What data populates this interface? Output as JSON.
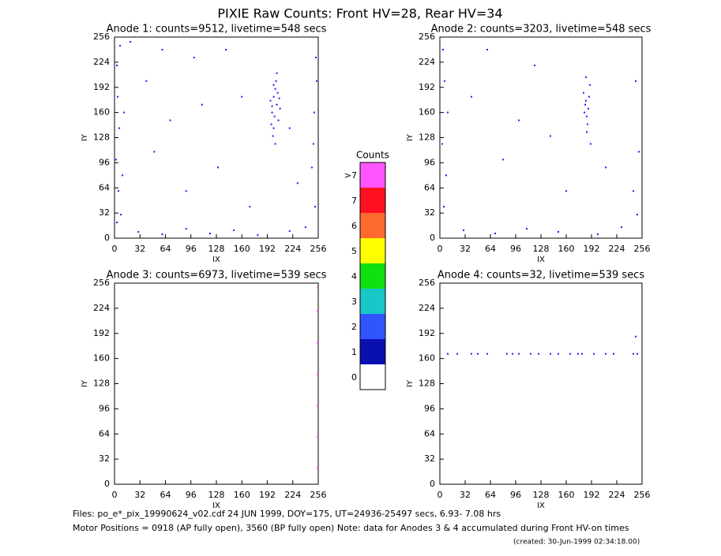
{
  "header": {
    "title": "PIXIE Raw Counts:  Front HV=28, Rear HV=34"
  },
  "footer": {
    "lines": [
      "Files: po_e*_pix_19990624_v02.cdf    24 JUN 1999, DOY=175, UT=24936-25497 secs,  6.93- 7.08 hrs",
      "Motor Positions = 0918 (AP fully open), 3560 (BP fully open)    Note: data for Anodes 3 & 4 accumulated during Front HV-on times"
    ],
    "created": "(created: 30-Jun-1999 02:34:18.00)"
  },
  "chart_data": [
    {
      "type": "scatter",
      "title": "Anode 1: counts=9512, livetime=548 secs",
      "x_label": "IX",
      "y_label": "IY",
      "color": "#1a1aff",
      "xlim": [
        0,
        256
      ],
      "ylim": [
        0,
        256
      ],
      "xticks": [
        0,
        32,
        64,
        96,
        128,
        160,
        192,
        224,
        256
      ],
      "yticks": [
        0,
        32,
        64,
        96,
        128,
        160,
        192,
        224,
        256
      ],
      "points": [
        [
          200,
          180
        ],
        [
          204,
          170
        ],
        [
          198,
          160
        ],
        [
          206,
          150
        ],
        [
          202,
          190
        ],
        [
          196,
          175
        ],
        [
          208,
          165
        ],
        [
          200,
          140
        ],
        [
          203,
          200
        ],
        [
          199,
          130
        ],
        [
          205,
          185
        ],
        [
          201,
          155
        ],
        [
          197,
          145
        ],
        [
          207,
          178
        ],
        [
          202,
          120
        ],
        [
          204,
          210
        ],
        [
          198,
          168
        ],
        [
          200,
          195
        ],
        [
          3,
          20
        ],
        [
          5,
          60
        ],
        [
          2,
          100
        ],
        [
          6,
          140
        ],
        [
          4,
          180
        ],
        [
          3,
          220
        ],
        [
          7,
          245
        ],
        [
          10,
          80
        ],
        [
          12,
          160
        ],
        [
          8,
          30
        ],
        [
          252,
          40
        ],
        [
          250,
          120
        ],
        [
          254,
          200
        ],
        [
          248,
          90
        ],
        [
          253,
          230
        ],
        [
          251,
          160
        ],
        [
          30,
          8
        ],
        [
          60,
          5
        ],
        [
          90,
          12
        ],
        [
          120,
          6
        ],
        [
          150,
          10
        ],
        [
          180,
          4
        ],
        [
          220,
          9
        ],
        [
          240,
          14
        ],
        [
          40,
          200
        ],
        [
          70,
          150
        ],
        [
          100,
          230
        ],
        [
          130,
          90
        ],
        [
          160,
          180
        ],
        [
          50,
          110
        ],
        [
          90,
          60
        ],
        [
          140,
          240
        ],
        [
          170,
          40
        ],
        [
          230,
          70
        ],
        [
          220,
          140
        ],
        [
          110,
          170
        ],
        [
          20,
          250
        ],
        [
          60,
          240
        ]
      ]
    },
    {
      "type": "scatter",
      "title": "Anode 2: counts=3203, livetime=548 secs",
      "x_label": "IX",
      "y_label": "IY",
      "color": "#1a1aff",
      "xlim": [
        0,
        256
      ],
      "ylim": [
        0,
        256
      ],
      "xticks": [
        0,
        32,
        64,
        96,
        128,
        160,
        192,
        224,
        256
      ],
      "yticks": [
        0,
        32,
        64,
        96,
        128,
        160,
        192,
        224,
        256
      ],
      "points": [
        [
          185,
          175
        ],
        [
          188,
          165
        ],
        [
          182,
          185
        ],
        [
          186,
          155
        ],
        [
          190,
          195
        ],
        [
          184,
          170
        ],
        [
          187,
          145
        ],
        [
          183,
          160
        ],
        [
          189,
          180
        ],
        [
          186,
          135
        ],
        [
          191,
          120
        ],
        [
          185,
          205
        ],
        [
          5,
          40
        ],
        [
          3,
          120
        ],
        [
          6,
          200
        ],
        [
          8,
          80
        ],
        [
          4,
          240
        ],
        [
          10,
          160
        ],
        [
          250,
          30
        ],
        [
          252,
          110
        ],
        [
          248,
          200
        ],
        [
          245,
          60
        ],
        [
          30,
          10
        ],
        [
          70,
          6
        ],
        [
          110,
          12
        ],
        [
          150,
          8
        ],
        [
          200,
          5
        ],
        [
          230,
          14
        ],
        [
          40,
          180
        ],
        [
          80,
          100
        ],
        [
          120,
          220
        ],
        [
          160,
          60
        ],
        [
          210,
          90
        ],
        [
          100,
          150
        ],
        [
          60,
          240
        ],
        [
          140,
          130
        ]
      ]
    },
    {
      "type": "scatter",
      "title": "Anode 3: counts=6973, livetime=539 secs",
      "x_label": "IX",
      "y_label": "IY",
      "color": "#ff55ff",
      "xlim": [
        0,
        256
      ],
      "ylim": [
        0,
        256
      ],
      "xticks": [
        0,
        32,
        64,
        96,
        128,
        160,
        192,
        224,
        256
      ],
      "yticks": [
        0,
        32,
        64,
        96,
        128,
        160,
        192,
        224,
        256
      ],
      "points": [
        [
          255,
          20
        ],
        [
          255,
          60
        ],
        [
          255,
          100
        ],
        [
          255,
          140
        ],
        [
          255,
          180
        ],
        [
          255,
          220
        ],
        [
          255,
          250
        ]
      ]
    },
    {
      "type": "scatter",
      "title": "Anode 4: counts=32, livetime=539 secs",
      "x_label": "IX",
      "y_label": "IY",
      "color": "#1a1aff",
      "xlim": [
        0,
        256
      ],
      "ylim": [
        0,
        256
      ],
      "xticks": [
        0,
        32,
        64,
        96,
        128,
        160,
        192,
        224,
        256
      ],
      "yticks": [
        0,
        32,
        64,
        96,
        128,
        160,
        192,
        224,
        256
      ],
      "points": [
        [
          10,
          166
        ],
        [
          22,
          166
        ],
        [
          40,
          166
        ],
        [
          48,
          166
        ],
        [
          60,
          166
        ],
        [
          85,
          166
        ],
        [
          92,
          166
        ],
        [
          100,
          166
        ],
        [
          115,
          166
        ],
        [
          125,
          166
        ],
        [
          140,
          166
        ],
        [
          150,
          166
        ],
        [
          165,
          166
        ],
        [
          175,
          166
        ],
        [
          180,
          166
        ],
        [
          195,
          166
        ],
        [
          210,
          166
        ],
        [
          220,
          166
        ],
        [
          245,
          166
        ],
        [
          250,
          166
        ],
        [
          248,
          188
        ]
      ]
    },
    {
      "type": "colorbar",
      "title": "Counts",
      "categories": [
        ">7",
        "7",
        "6",
        "5",
        "4",
        "3",
        "2",
        "1",
        "0"
      ],
      "colors": [
        "#ff55ff",
        "#ff1020",
        "#ff6a30",
        "#ffff00",
        "#10e010",
        "#18c8c8",
        "#3055ff",
        "#0a10b0",
        "#ffffff"
      ]
    }
  ]
}
